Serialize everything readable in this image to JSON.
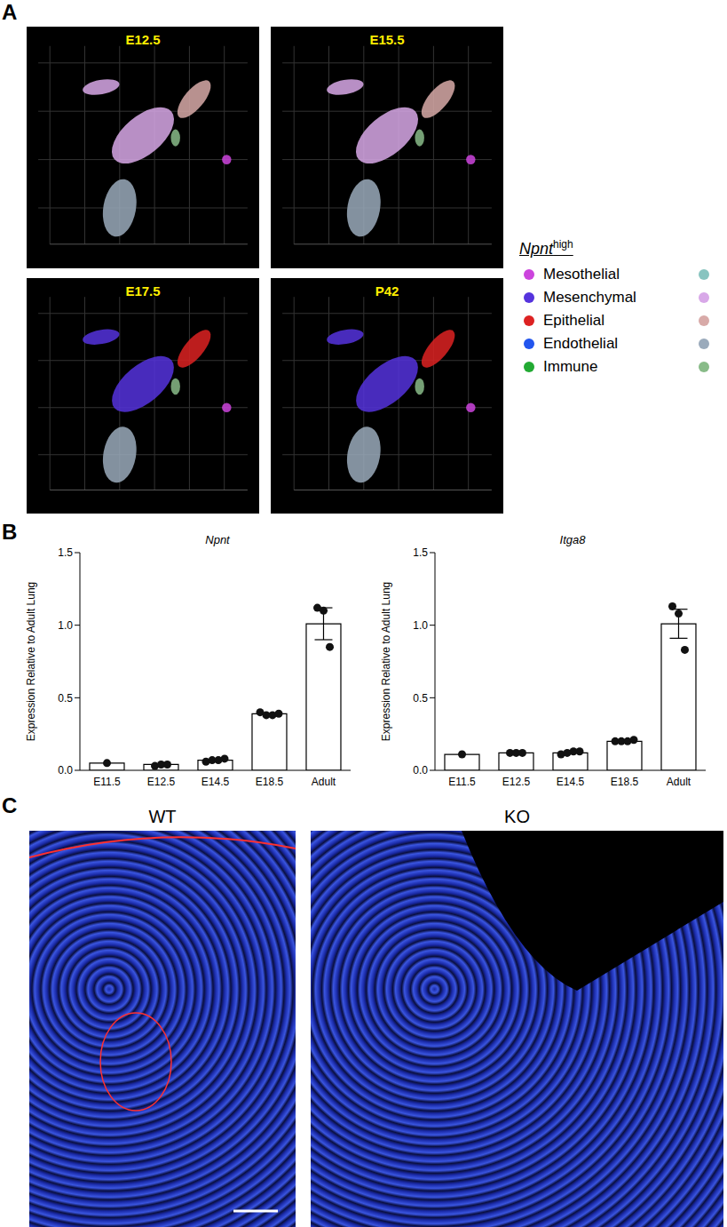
{
  "panel_labels": [
    "A",
    "B",
    "C"
  ],
  "umap": {
    "panels": [
      "E12.5",
      "E15.5",
      "E17.5",
      "P42"
    ],
    "legend": {
      "title": "Npnt",
      "title_superscript": "high",
      "items": [
        {
          "name": "Mesothelial",
          "color": "#cc44dd",
          "low_color": "#88c4c0"
        },
        {
          "name": "Mesenchymal",
          "color": "#5533dd",
          "low_color": "#d8a8e8"
        },
        {
          "name": "Epithelial",
          "color": "#dd2222",
          "low_color": "#d8aaa8"
        },
        {
          "name": "Endothelial",
          "color": "#2255ee",
          "low_color": "#9aaabb"
        },
        {
          "name": "Immune",
          "color": "#22aa33",
          "low_color": "#88bb88"
        }
      ]
    }
  },
  "chart_data": [
    {
      "type": "bar",
      "title": "Npnt",
      "y_label": "Expression Relative to Adult Lung",
      "categories": [
        "E11.5",
        "E12.5",
        "E14.5",
        "E18.5",
        "Adult"
      ],
      "values": [
        0.05,
        0.04,
        0.07,
        0.39,
        1.01
      ],
      "error": [
        0,
        0,
        0,
        0,
        0.11
      ],
      "points": [
        [
          0.05
        ],
        [
          0.03,
          0.04,
          0.04
        ],
        [
          0.06,
          0.07,
          0.07,
          0.08
        ],
        [
          0.4,
          0.38,
          0.38,
          0.39
        ],
        [
          1.12,
          1.1,
          0.85
        ]
      ],
      "color": "#ffffff",
      "ylim": [
        0,
        1.5
      ],
      "yticks": [
        {
          "value": 0,
          "label": "0.0"
        },
        {
          "value": 0.5,
          "label": "0.5"
        },
        {
          "value": 1,
          "label": "1.0"
        },
        {
          "value": 1.5,
          "label": "1.5"
        }
      ]
    },
    {
      "type": "bar",
      "title": "Itga8",
      "y_label": "Expression Relative to Adult Lung",
      "categories": [
        "E11.5",
        "E12.5",
        "E14.5",
        "E18.5",
        "Adult"
      ],
      "values": [
        0.11,
        0.12,
        0.12,
        0.2,
        1.01
      ],
      "error": [
        0,
        0,
        0,
        0,
        0.1
      ],
      "points": [
        [
          0.11
        ],
        [
          0.12,
          0.12,
          0.12
        ],
        [
          0.11,
          0.12,
          0.13,
          0.13
        ],
        [
          0.2,
          0.2,
          0.2,
          0.21
        ],
        [
          1.13,
          1.08,
          0.83
        ]
      ],
      "color": "#ffffff",
      "ylim": [
        0,
        1.5
      ],
      "yticks": [
        {
          "value": 0,
          "label": "0.0"
        },
        {
          "value": 0.5,
          "label": "0.5"
        },
        {
          "value": 1,
          "label": "1.0"
        },
        {
          "value": 1.5,
          "label": "1.5"
        }
      ]
    }
  ],
  "images": {
    "labels": [
      "WT",
      "KO"
    ]
  }
}
